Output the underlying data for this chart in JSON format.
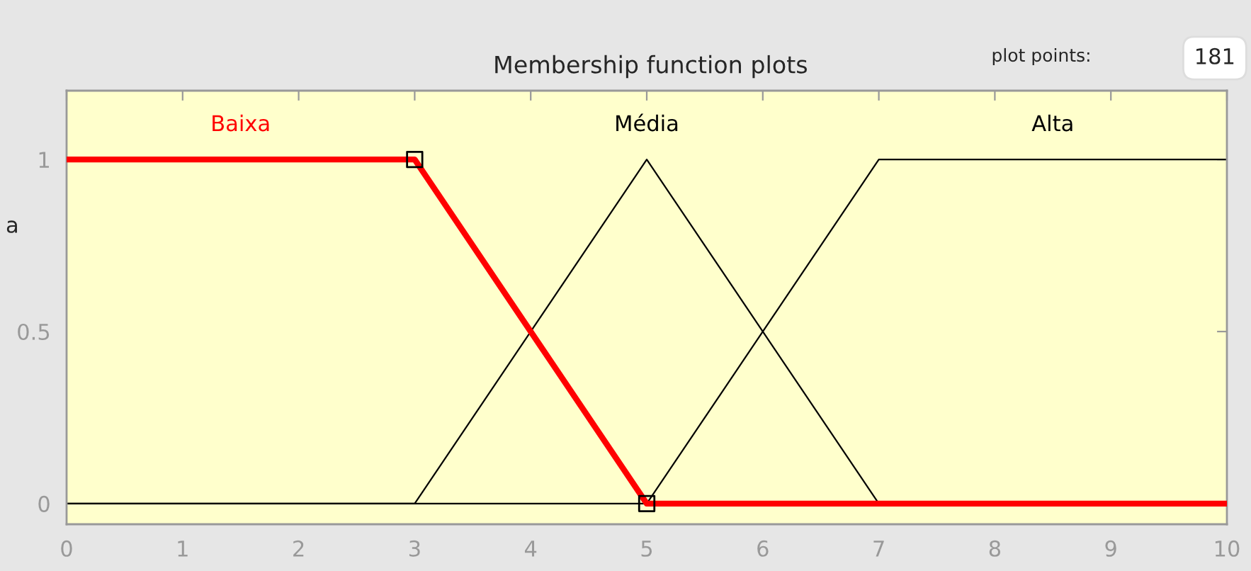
{
  "chart_data": {
    "type": "line",
    "title": "Membership function plots",
    "ylabel": "a",
    "annotations": [
      "plot points:",
      "181"
    ],
    "series": [
      {
        "name": "Baixa",
        "color": "#ff0000",
        "x": [
          0,
          3,
          5,
          10
        ],
        "values": [
          1,
          1,
          0,
          0
        ]
      },
      {
        "name": "Média",
        "color": "#000000",
        "x": [
          0,
          3,
          5,
          7,
          10
        ],
        "values": [
          0,
          0,
          1,
          0,
          0
        ]
      },
      {
        "name": "Alta",
        "color": "#000000",
        "x": [
          0,
          5,
          7,
          10
        ],
        "values": [
          0,
          0,
          1,
          1
        ]
      },
      {
        "type": "scatter",
        "color": "#000000",
        "marker": "square",
        "x": [
          3,
          5
        ],
        "values": [
          1,
          0
        ]
      }
    ],
    "xlim": [
      0,
      10
    ],
    "xticks": [
      0,
      1,
      2,
      3,
      4,
      5,
      6,
      7,
      8,
      9,
      10
    ],
    "ylim": [
      -0.06,
      1.2
    ],
    "yticks": [
      0,
      0.5,
      1
    ]
  }
}
